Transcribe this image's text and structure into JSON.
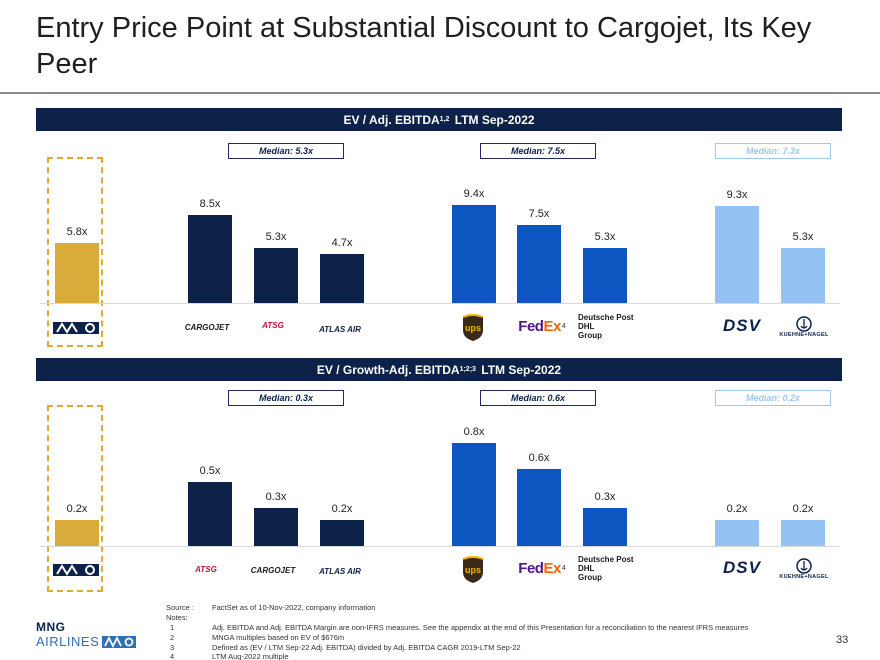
{
  "title": "Entry Price Point at Substantial Discount to Cargojet, Its Key Peer",
  "colors": {
    "navy": "#0c2249",
    "mng_gold": "#d8ab3a",
    "blue": "#0d56c2",
    "light_blue": "#93c2f3"
  },
  "charts": [
    {
      "band_title": "EV / Adj. EBITDA",
      "band_sup": "1,2",
      "band_suffix": "LTM Sep-2022",
      "medians": [
        "Median: 5.3x",
        "Median: 7.5x",
        "Median: 7.3x"
      ],
      "chart_data": {
        "type": "bar",
        "categories": [
          "MNG",
          "Cargojet",
          "ATSG",
          "Atlas Air",
          "UPS",
          "FedEx",
          "Deutsche Post DHL Group",
          "DSV",
          "Kuehne + Nagel"
        ],
        "values": [
          5.8,
          8.5,
          5.3,
          4.7,
          9.4,
          7.5,
          5.3,
          9.3,
          5.3
        ],
        "labels": [
          "5.8x",
          "8.5x",
          "5.3x",
          "4.7x",
          "9.4x",
          "7.5x",
          "5.3x",
          "9.3x",
          "5.3x"
        ],
        "groups": [
          "mng",
          "navy",
          "navy",
          "navy",
          "blue",
          "blue",
          "blue",
          "light",
          "light"
        ],
        "ylim": [
          0,
          10
        ]
      }
    },
    {
      "band_title": "EV / Growth-Adj.  EBITDA",
      "band_sup": "1;2;3",
      "band_suffix": "LTM Sep-2022",
      "medians": [
        "Median: 0.3x",
        "Median: 0.6x",
        "Median: 0.2x"
      ],
      "chart_data": {
        "type": "bar",
        "categories": [
          "MNG",
          "ATSG",
          "Cargojet",
          "Atlas Air",
          "UPS",
          "FedEx",
          "Deutsche Post DHL Group",
          "DSV",
          "Kuehne + Nagel"
        ],
        "values": [
          0.2,
          0.5,
          0.3,
          0.2,
          0.8,
          0.6,
          0.3,
          0.2,
          0.2
        ],
        "labels": [
          "0.2x",
          "0.5x",
          "0.3x",
          "0.2x",
          "0.8x",
          "0.6x",
          "0.3x",
          "0.2x",
          "0.2x"
        ],
        "groups": [
          "mng",
          "navy",
          "navy",
          "navy",
          "blue",
          "blue",
          "blue",
          "light",
          "light"
        ],
        "ylim": [
          0,
          0.85
        ]
      }
    }
  ],
  "logos": {
    "cargojet": "CARGOJET",
    "atsg": "ATSG",
    "atlas": "ATLAS AIR",
    "ups": "ups",
    "fedex_fe": "Fed",
    "fedex_ex": "Ex",
    "fedex_note": "4",
    "dhl_line1": "Deutsche Post DHL",
    "dhl_line2": "Group",
    "dsv": "DSV",
    "kn": "KUEHNE+NAGEL"
  },
  "footer": {
    "source_key": "Source :",
    "source_text": "FactSet as of 10-Nov-2022, company information",
    "notes_key": "Notes:",
    "notes": [
      {
        "n": "1",
        "text": "Adj. EBITDA and Adj. EBITDA Margin are non-IFRS measures. See the appendix at the end of this Presentation for a reconciliation to the nearest IFRS measures"
      },
      {
        "n": "2",
        "text": "MNGA multiples based on EV of $676m"
      },
      {
        "n": "3",
        "text": "Defined as (EV / LTM Sep-22 Adj. EBITDA) divided by Adj. EBITDA CAGR 2019-LTM Sep-22"
      },
      {
        "n": "4",
        "text": "LTM Aug-2022 multiple"
      }
    ]
  },
  "brand": {
    "line1": "MNG",
    "line2": "AIRLINES"
  },
  "page_number": "33"
}
